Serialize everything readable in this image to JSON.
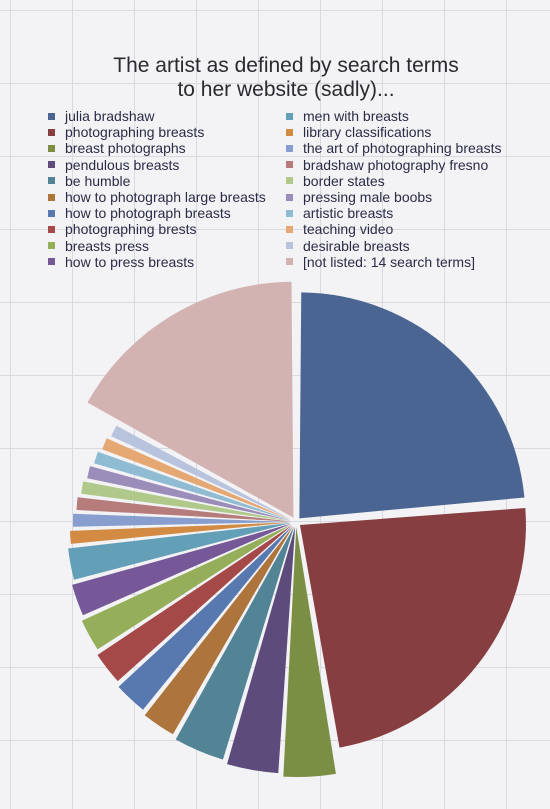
{
  "chart_data": {
    "type": "pie",
    "title_lines": [
      "The artist as defined by search terms",
      "to her website (sadly)..."
    ],
    "legend_placement": "top, two columns",
    "slices": [
      {
        "label": "julia bradshaw",
        "value": 23.5,
        "color": "#4a6592"
      },
      {
        "label": "photographing breasts",
        "value": 23.5,
        "color": "#873e40"
      },
      {
        "label": "breast photographs",
        "value": 3.6,
        "color": "#7b8f44"
      },
      {
        "label": "pendulous breasts",
        "value": 3.6,
        "color": "#5d4b7c"
      },
      {
        "label": "be humble",
        "value": 3.6,
        "color": "#528496"
      },
      {
        "label": "how to photograph large breasts",
        "value": 2.5,
        "color": "#ad743b"
      },
      {
        "label": "how to photograph breasts",
        "value": 2.5,
        "color": "#5878b0"
      },
      {
        "label": "photographing brests",
        "value": 2.5,
        "color": "#a44848"
      },
      {
        "label": "breasts press",
        "value": 2.5,
        "color": "#95ae59"
      },
      {
        "label": "how to press breasts",
        "value": 2.5,
        "color": "#765899"
      },
      {
        "label": "men with breasts",
        "value": 2.5,
        "color": "#649fb8"
      },
      {
        "label": "library classifications",
        "value": 1.2,
        "color": "#d38b43"
      },
      {
        "label": "the art of photographing breasts",
        "value": 1.2,
        "color": "#879ecf"
      },
      {
        "label": "bradshaw photography fresno",
        "value": 1.2,
        "color": "#b67b7b"
      },
      {
        "label": "border states",
        "value": 1.2,
        "color": "#b0c98b"
      },
      {
        "label": "pressing male boobs",
        "value": 1.2,
        "color": "#9a8dba"
      },
      {
        "label": "artistic breasts",
        "value": 1.2,
        "color": "#8fbcd2"
      },
      {
        "label": "teaching video",
        "value": 1.2,
        "color": "#e6a873"
      },
      {
        "label": "desirable breasts",
        "value": 1.2,
        "color": "#b8c3de"
      },
      {
        "label": "[not listed: 14 search terms]",
        "value": 16.9,
        "color": "#d3b3b2"
      }
    ]
  }
}
